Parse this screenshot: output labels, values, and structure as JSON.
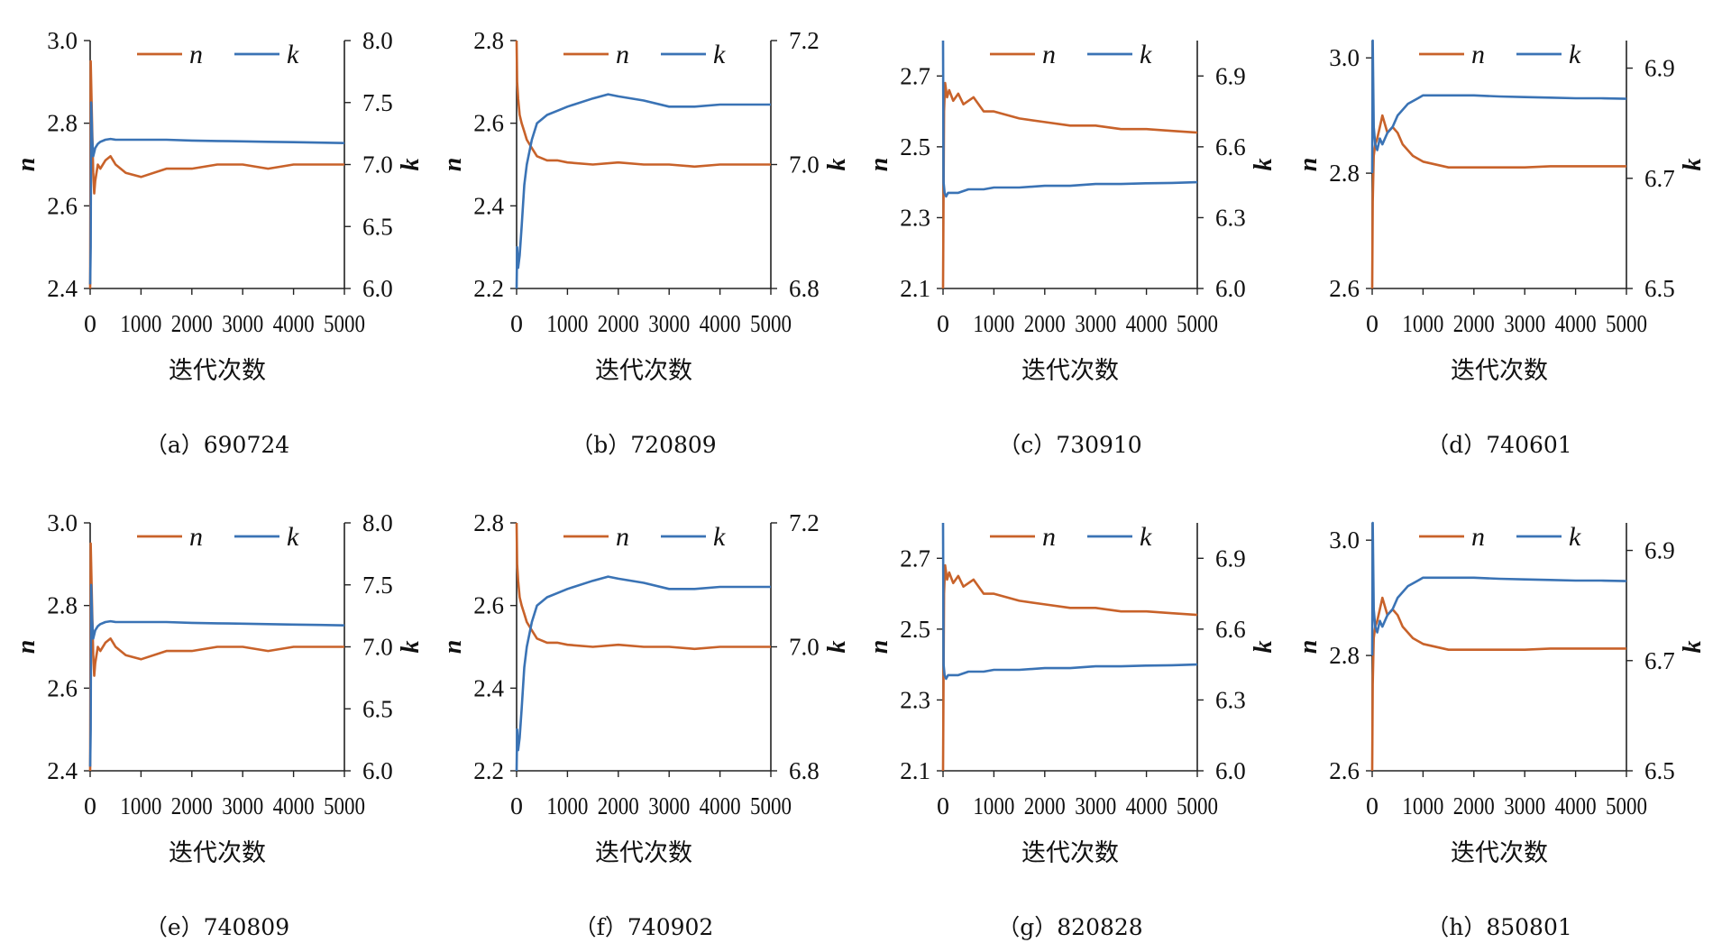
{
  "colors": {
    "n": "#c8622a",
    "k": "#3a73b5",
    "axis": "#222222"
  },
  "chart_data": [
    {
      "type": "line",
      "caption": "（a）690724",
      "xlabel": "迭代次数",
      "ylabel_left": "n",
      "ylabel_right": "k",
      "x_ticks": [
        "0",
        "1000",
        "2000",
        "3000",
        "4000",
        "5000"
      ],
      "xlim": [
        0,
        5000
      ],
      "y_left_ticks": [
        "2.4",
        "2.6",
        "2.8",
        "3.0"
      ],
      "y_left_lim": [
        2.4,
        3.0
      ],
      "y_right_ticks": [
        "6.0",
        "6.5",
        "7.0",
        "7.5",
        "8.0"
      ],
      "y_right_lim": [
        6.0,
        8.0
      ],
      "legend_position": "top",
      "series": [
        {
          "name": "n",
          "axis": "left",
          "x": [
            0,
            10,
            20,
            40,
            60,
            80,
            100,
            150,
            200,
            300,
            400,
            500,
            700,
            1000,
            1500,
            2000,
            2500,
            3000,
            3500,
            4000,
            4500,
            5000
          ],
          "y": [
            2.4,
            2.95,
            2.9,
            2.78,
            2.68,
            2.63,
            2.66,
            2.7,
            2.69,
            2.71,
            2.72,
            2.7,
            2.68,
            2.67,
            2.69,
            2.69,
            2.7,
            2.7,
            2.69,
            2.7,
            2.7,
            2.7
          ]
        },
        {
          "name": "k",
          "axis": "left",
          "x": [
            0,
            10,
            20,
            40,
            60,
            80,
            100,
            150,
            200,
            300,
            400,
            500,
            700,
            1000,
            1500,
            2000,
            2500,
            3000,
            3500,
            4000,
            4500,
            5000
          ],
          "y": [
            2.41,
            2.5,
            2.85,
            2.76,
            2.72,
            2.73,
            2.74,
            2.75,
            2.755,
            2.76,
            2.762,
            2.76,
            2.76,
            2.76,
            2.76,
            2.758,
            2.757,
            2.756,
            2.755,
            2.754,
            2.753,
            2.752
          ]
        }
      ]
    },
    {
      "type": "line",
      "caption": "（b）720809",
      "xlabel": "迭代次数",
      "ylabel_left": "n",
      "ylabel_right": "k",
      "x_ticks": [
        "0",
        "1000",
        "2000",
        "3000",
        "4000",
        "5000"
      ],
      "xlim": [
        0,
        5000
      ],
      "y_left_ticks": [
        "2.2",
        "2.4",
        "2.6",
        "2.8"
      ],
      "y_left_lim": [
        2.2,
        2.8
      ],
      "y_right_ticks": [
        "6.8",
        "7.0",
        "7.2"
      ],
      "y_right_lim": [
        6.8,
        7.2
      ],
      "legend_position": "top",
      "series": [
        {
          "name": "n",
          "axis": "left",
          "x": [
            0,
            10,
            30,
            60,
            100,
            150,
            200,
            300,
            400,
            600,
            800,
            1000,
            1500,
            2000,
            2500,
            3000,
            3500,
            4000,
            4500,
            5000
          ],
          "y": [
            2.8,
            2.7,
            2.66,
            2.62,
            2.6,
            2.58,
            2.56,
            2.54,
            2.52,
            2.51,
            2.51,
            2.505,
            2.5,
            2.505,
            2.5,
            2.5,
            2.495,
            2.5,
            2.5,
            2.5
          ]
        },
        {
          "name": "k",
          "axis": "left",
          "x": [
            0,
            10,
            30,
            60,
            100,
            150,
            200,
            300,
            400,
            600,
            800,
            1000,
            1500,
            1800,
            2000,
            2500,
            3000,
            3500,
            4000,
            4500,
            5000
          ],
          "y": [
            2.2,
            2.3,
            2.25,
            2.28,
            2.35,
            2.45,
            2.5,
            2.56,
            2.6,
            2.62,
            2.63,
            2.64,
            2.66,
            2.67,
            2.665,
            2.655,
            2.64,
            2.64,
            2.645,
            2.645,
            2.645
          ]
        }
      ]
    },
    {
      "type": "line",
      "caption": "（c）730910",
      "xlabel": "迭代次数",
      "ylabel_left": "n",
      "ylabel_right": "k",
      "x_ticks": [
        "0",
        "1000",
        "2000",
        "3000",
        "4000",
        "5000"
      ],
      "xlim": [
        0,
        5000
      ],
      "y_left_ticks": [
        "2.1",
        "2.3",
        "2.5",
        "2.7"
      ],
      "y_left_lim": [
        2.1,
        2.8
      ],
      "y_right_ticks": [
        "6.0",
        "6.3",
        "6.6",
        "6.9"
      ],
      "y_right_lim": [
        6.0,
        7.05
      ],
      "legend_position": "top",
      "series": [
        {
          "name": "n",
          "axis": "left",
          "x": [
            0,
            20,
            40,
            80,
            120,
            200,
            300,
            400,
            600,
            800,
            1000,
            1500,
            2000,
            2500,
            3000,
            3500,
            4000,
            4500,
            5000
          ],
          "y": [
            2.1,
            2.6,
            2.68,
            2.64,
            2.66,
            2.63,
            2.65,
            2.62,
            2.64,
            2.6,
            2.6,
            2.58,
            2.57,
            2.56,
            2.56,
            2.55,
            2.55,
            2.545,
            2.54
          ]
        },
        {
          "name": "k",
          "axis": "left",
          "x": [
            0,
            10,
            30,
            60,
            100,
            200,
            300,
            500,
            800,
            1000,
            1500,
            2000,
            2500,
            3000,
            3500,
            4000,
            4500,
            5000
          ],
          "y": [
            2.8,
            2.4,
            2.37,
            2.36,
            2.37,
            2.37,
            2.37,
            2.38,
            2.38,
            2.385,
            2.385,
            2.39,
            2.39,
            2.395,
            2.395,
            2.397,
            2.398,
            2.4
          ]
        }
      ]
    },
    {
      "type": "line",
      "caption": "（d）740601",
      "xlabel": "迭代次数",
      "ylabel_left": "n",
      "ylabel_right": "k",
      "x_ticks": [
        "0",
        "1000",
        "2000",
        "3000",
        "4000",
        "5000"
      ],
      "xlim": [
        0,
        5000
      ],
      "y_left_ticks": [
        "2.6",
        "2.8",
        "3.0"
      ],
      "y_left_lim": [
        2.6,
        3.03
      ],
      "y_right_ticks": [
        "6.5",
        "6.7",
        "6.9"
      ],
      "y_right_lim": [
        6.5,
        6.95
      ],
      "legend_position": "top",
      "series": [
        {
          "name": "n",
          "axis": "left",
          "x": [
            0,
            10,
            30,
            60,
            100,
            150,
            200,
            300,
            400,
            500,
            600,
            800,
            1000,
            1500,
            2000,
            2500,
            3000,
            3500,
            4000,
            4500,
            5000
          ],
          "y": [
            2.6,
            2.75,
            2.83,
            2.85,
            2.86,
            2.88,
            2.9,
            2.87,
            2.88,
            2.87,
            2.85,
            2.83,
            2.82,
            2.81,
            2.81,
            2.81,
            2.81,
            2.812,
            2.812,
            2.812,
            2.812
          ]
        },
        {
          "name": "k",
          "axis": "left",
          "x": [
            0,
            10,
            30,
            60,
            100,
            150,
            200,
            300,
            400,
            500,
            700,
            900,
            1000,
            1500,
            2000,
            2500,
            3000,
            3500,
            4000,
            4500,
            5000
          ],
          "y": [
            2.8,
            3.03,
            2.88,
            2.85,
            2.84,
            2.86,
            2.85,
            2.87,
            2.88,
            2.9,
            2.92,
            2.93,
            2.935,
            2.935,
            2.935,
            2.933,
            2.932,
            2.931,
            2.93,
            2.93,
            2.929
          ]
        }
      ]
    },
    {
      "type": "line",
      "caption": "（e）740809",
      "xlabel": "迭代次数",
      "ylabel_left": "n",
      "ylabel_right": "k",
      "x_ticks": [
        "0",
        "1000",
        "2000",
        "3000",
        "4000",
        "5000"
      ],
      "xlim": [
        0,
        5000
      ],
      "y_left_ticks": [
        "2.4",
        "2.6",
        "2.8",
        "3.0"
      ],
      "y_left_lim": [
        2.4,
        3.0
      ],
      "y_right_ticks": [
        "6.0",
        "6.5",
        "7.0",
        "7.5",
        "8.0"
      ],
      "y_right_lim": [
        6.0,
        8.0
      ],
      "legend_position": "top",
      "series": [
        {
          "name": "n",
          "axis": "left",
          "x": [
            0,
            10,
            20,
            40,
            60,
            80,
            100,
            150,
            200,
            300,
            400,
            500,
            700,
            1000,
            1500,
            2000,
            2500,
            3000,
            3500,
            4000,
            4500,
            5000
          ],
          "y": [
            2.4,
            2.95,
            2.9,
            2.78,
            2.68,
            2.63,
            2.66,
            2.7,
            2.69,
            2.71,
            2.72,
            2.7,
            2.68,
            2.67,
            2.69,
            2.69,
            2.7,
            2.7,
            2.69,
            2.7,
            2.7,
            2.7
          ]
        },
        {
          "name": "k",
          "axis": "left",
          "x": [
            0,
            10,
            20,
            40,
            60,
            80,
            100,
            150,
            200,
            300,
            400,
            500,
            700,
            1000,
            1500,
            2000,
            2500,
            3000,
            3500,
            4000,
            4500,
            5000
          ],
          "y": [
            2.41,
            2.5,
            2.85,
            2.76,
            2.72,
            2.73,
            2.74,
            2.75,
            2.755,
            2.76,
            2.762,
            2.76,
            2.76,
            2.76,
            2.76,
            2.758,
            2.757,
            2.756,
            2.755,
            2.754,
            2.753,
            2.752
          ]
        }
      ]
    },
    {
      "type": "line",
      "caption": "（f）740902",
      "xlabel": "迭代次数",
      "ylabel_left": "n",
      "ylabel_right": "k",
      "x_ticks": [
        "0",
        "1000",
        "2000",
        "3000",
        "4000",
        "5000"
      ],
      "xlim": [
        0,
        5000
      ],
      "y_left_ticks": [
        "2.2",
        "2.4",
        "2.6",
        "2.8"
      ],
      "y_left_lim": [
        2.2,
        2.8
      ],
      "y_right_ticks": [
        "6.8",
        "7.0",
        "7.2"
      ],
      "y_right_lim": [
        6.8,
        7.2
      ],
      "legend_position": "top",
      "series": [
        {
          "name": "n",
          "axis": "left",
          "x": [
            0,
            10,
            30,
            60,
            100,
            150,
            200,
            300,
            400,
            600,
            800,
            1000,
            1500,
            2000,
            2500,
            3000,
            3500,
            4000,
            4500,
            5000
          ],
          "y": [
            2.8,
            2.7,
            2.66,
            2.62,
            2.6,
            2.58,
            2.56,
            2.54,
            2.52,
            2.51,
            2.51,
            2.505,
            2.5,
            2.505,
            2.5,
            2.5,
            2.495,
            2.5,
            2.5,
            2.5
          ]
        },
        {
          "name": "k",
          "axis": "left",
          "x": [
            0,
            10,
            30,
            60,
            100,
            150,
            200,
            300,
            400,
            600,
            800,
            1000,
            1500,
            1800,
            2000,
            2500,
            3000,
            3500,
            4000,
            4500,
            5000
          ],
          "y": [
            2.2,
            2.3,
            2.25,
            2.28,
            2.35,
            2.45,
            2.5,
            2.56,
            2.6,
            2.62,
            2.63,
            2.64,
            2.66,
            2.67,
            2.665,
            2.655,
            2.64,
            2.64,
            2.645,
            2.645,
            2.645
          ]
        }
      ]
    },
    {
      "type": "line",
      "caption": "（g）820828",
      "xlabel": "迭代次数",
      "ylabel_left": "n",
      "ylabel_right": "k",
      "x_ticks": [
        "0",
        "1000",
        "2000",
        "3000",
        "4000",
        "5000"
      ],
      "xlim": [
        0,
        5000
      ],
      "y_left_ticks": [
        "2.1",
        "2.3",
        "2.5",
        "2.7"
      ],
      "y_left_lim": [
        2.1,
        2.8
      ],
      "y_right_ticks": [
        "6.0",
        "6.3",
        "6.6",
        "6.9"
      ],
      "y_right_lim": [
        6.0,
        7.05
      ],
      "legend_position": "top",
      "series": [
        {
          "name": "n",
          "axis": "left",
          "x": [
            0,
            20,
            40,
            80,
            120,
            200,
            300,
            400,
            600,
            800,
            1000,
            1500,
            2000,
            2500,
            3000,
            3500,
            4000,
            4500,
            5000
          ],
          "y": [
            2.1,
            2.6,
            2.68,
            2.64,
            2.66,
            2.63,
            2.65,
            2.62,
            2.64,
            2.6,
            2.6,
            2.58,
            2.57,
            2.56,
            2.56,
            2.55,
            2.55,
            2.545,
            2.54
          ]
        },
        {
          "name": "k",
          "axis": "left",
          "x": [
            0,
            10,
            30,
            60,
            100,
            200,
            300,
            500,
            800,
            1000,
            1500,
            2000,
            2500,
            3000,
            3500,
            4000,
            4500,
            5000
          ],
          "y": [
            2.8,
            2.4,
            2.37,
            2.36,
            2.37,
            2.37,
            2.37,
            2.38,
            2.38,
            2.385,
            2.385,
            2.39,
            2.39,
            2.395,
            2.395,
            2.397,
            2.398,
            2.4
          ]
        }
      ]
    },
    {
      "type": "line",
      "caption": "（h）850801",
      "xlabel": "迭代次数",
      "ylabel_left": "n",
      "ylabel_right": "k",
      "x_ticks": [
        "0",
        "1000",
        "2000",
        "3000",
        "4000",
        "5000"
      ],
      "xlim": [
        0,
        5000
      ],
      "y_left_ticks": [
        "2.6",
        "2.8",
        "3.0"
      ],
      "y_left_lim": [
        2.6,
        3.03
      ],
      "y_right_ticks": [
        "6.5",
        "6.7",
        "6.9"
      ],
      "y_right_lim": [
        6.5,
        6.95
      ],
      "legend_position": "top",
      "series": [
        {
          "name": "n",
          "axis": "left",
          "x": [
            0,
            10,
            30,
            60,
            100,
            150,
            200,
            300,
            400,
            500,
            600,
            800,
            1000,
            1500,
            2000,
            2500,
            3000,
            3500,
            4000,
            4500,
            5000
          ],
          "y": [
            2.6,
            2.75,
            2.83,
            2.85,
            2.86,
            2.88,
            2.9,
            2.87,
            2.88,
            2.87,
            2.85,
            2.83,
            2.82,
            2.81,
            2.81,
            2.81,
            2.81,
            2.812,
            2.812,
            2.812,
            2.812
          ]
        },
        {
          "name": "k",
          "axis": "left",
          "x": [
            0,
            10,
            30,
            60,
            100,
            150,
            200,
            300,
            400,
            500,
            700,
            900,
            1000,
            1500,
            2000,
            2500,
            3000,
            3500,
            4000,
            4500,
            5000
          ],
          "y": [
            2.8,
            3.03,
            2.88,
            2.85,
            2.84,
            2.86,
            2.85,
            2.87,
            2.88,
            2.9,
            2.92,
            2.93,
            2.935,
            2.935,
            2.935,
            2.933,
            2.932,
            2.931,
            2.93,
            2.93,
            2.929
          ]
        }
      ]
    }
  ]
}
